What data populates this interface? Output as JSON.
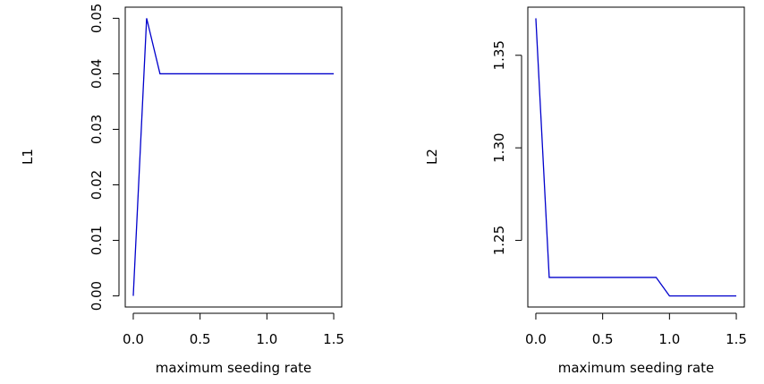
{
  "chart_data": [
    {
      "type": "line",
      "xlabel": "maximum seeding rate",
      "ylabel": "L1",
      "xlim": [
        -0.06,
        1.56
      ],
      "ylim": [
        -0.002,
        0.052
      ],
      "x_ticks": [
        "0.0",
        "0.5",
        "1.0",
        "1.5"
      ],
      "y_ticks": [
        "0.00",
        "0.01",
        "0.02",
        "0.03",
        "0.04",
        "0.05"
      ],
      "series": [
        {
          "color": "#0000cc",
          "x": [
            0.0,
            0.1,
            0.2,
            1.5
          ],
          "y": [
            0.0,
            0.05,
            0.04,
            0.04
          ]
        }
      ]
    },
    {
      "type": "line",
      "xlabel": "maximum seeding rate",
      "ylabel": "L2",
      "xlim": [
        -0.06,
        1.56
      ],
      "ylim": [
        1.214,
        1.376
      ],
      "x_ticks": [
        "0.0",
        "0.5",
        "1.0",
        "1.5"
      ],
      "y_ticks": [
        "1.25",
        "1.30",
        "1.35"
      ],
      "series": [
        {
          "color": "#0000cc",
          "x": [
            0.0,
            0.1,
            0.9,
            1.0,
            1.5
          ],
          "y": [
            1.37,
            1.23,
            1.23,
            1.22,
            1.22
          ]
        }
      ]
    }
  ]
}
